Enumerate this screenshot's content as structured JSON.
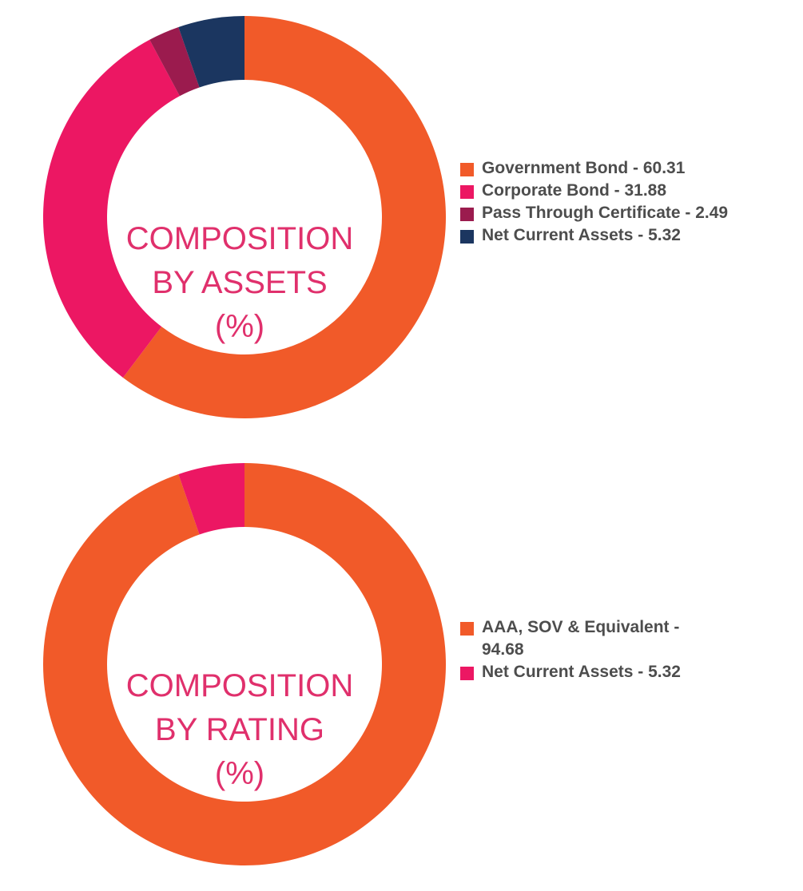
{
  "chart_data": [
    {
      "type": "pie",
      "variant": "donut",
      "title": [
        "COMPOSITION",
        "BY ASSETS",
        "(%)"
      ],
      "categories": [
        "Government Bond",
        "Corporate Bond",
        "Pass Through Certificate",
        "Net Current Assets"
      ],
      "values": [
        60.31,
        31.88,
        2.49,
        5.32
      ],
      "labels": [
        "Government Bond - 60.31",
        "Corporate Bond - 31.88",
        "Pass Through Certificate - 2.49",
        "Net Current Assets - 5.32"
      ],
      "colors": [
        "#F15A29",
        "#EC1763",
        "#9B1B4E",
        "#1B3660"
      ],
      "legend_position": "right"
    },
    {
      "type": "pie",
      "variant": "donut",
      "title": [
        "COMPOSITION",
        "BY RATING",
        "(%)"
      ],
      "categories": [
        "AAA, SOV & Equivalent",
        "Net Current Assets"
      ],
      "values": [
        94.68,
        5.32
      ],
      "labels": [
        "AAA, SOV & Equivalent - 94.68",
        "Net Current Assets - 5.32"
      ],
      "colors": [
        "#F15A29",
        "#EC1763"
      ],
      "legend_position": "right"
    }
  ]
}
